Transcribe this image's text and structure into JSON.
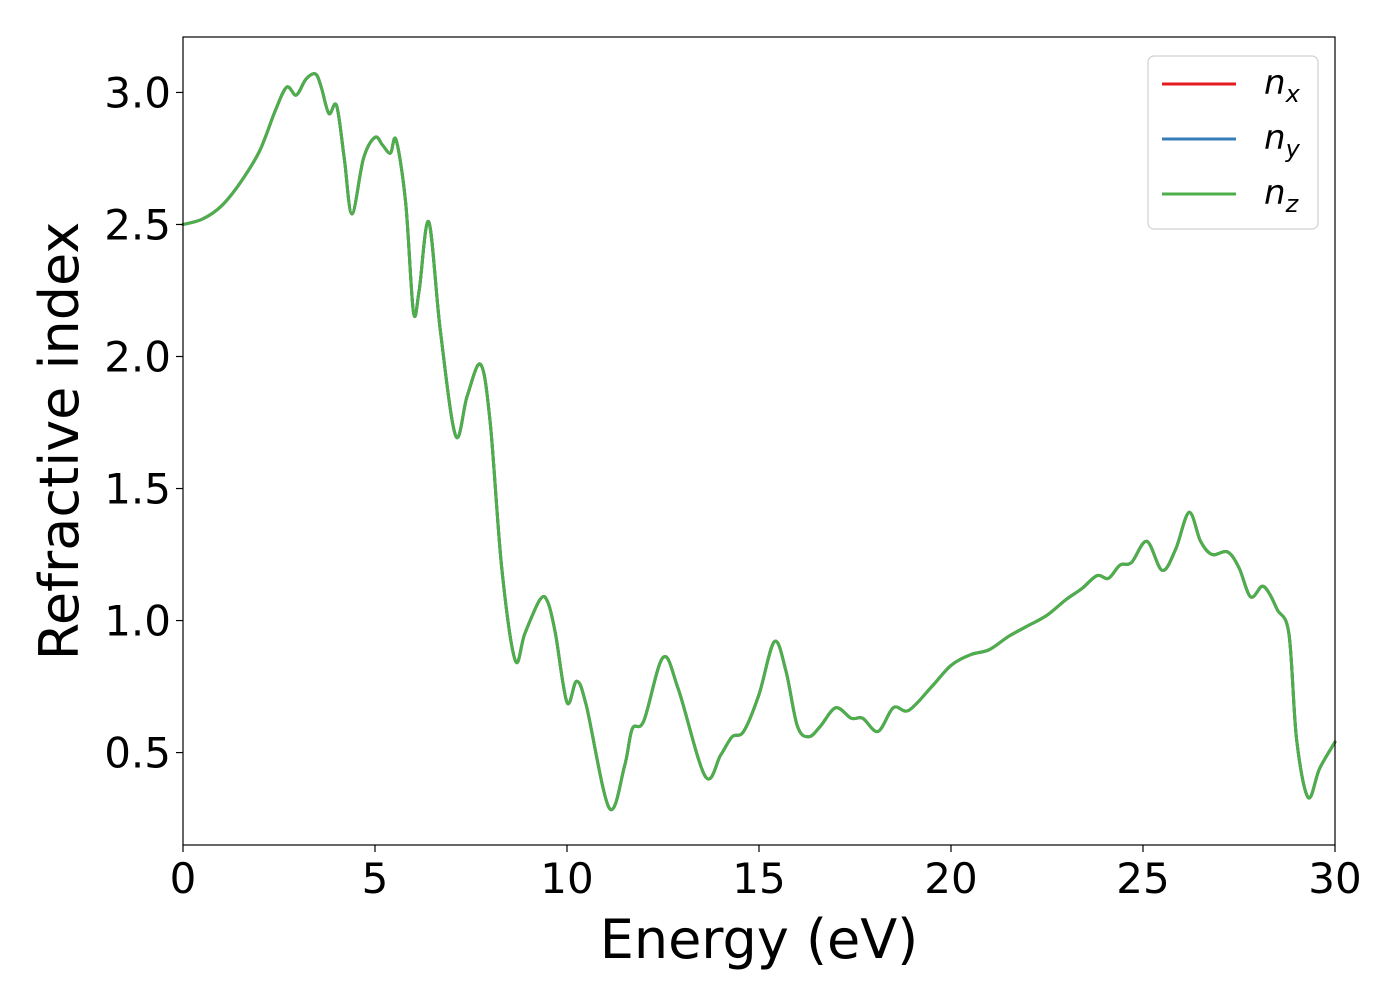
{
  "chart_data": {
    "type": "line",
    "title": "",
    "xlabel": "Energy (eV)",
    "ylabel": "Refractive index",
    "xlim": [
      0,
      30
    ],
    "ylim": [
      0.15,
      3.21
    ],
    "xticks": [
      0,
      5,
      10,
      15,
      20,
      25,
      30
    ],
    "xtick_labels": [
      "0",
      "5",
      "10",
      "15",
      "20",
      "25",
      "30"
    ],
    "yticks": [
      0.5,
      1.0,
      1.5,
      2.0,
      2.5,
      3.0
    ],
    "ytick_labels": [
      "0.5",
      "1.0",
      "1.5",
      "2.0",
      "2.5",
      "3.0"
    ],
    "grid": false,
    "legend_position": "top-right",
    "colors": {
      "n_x": "#e41a1c",
      "n_y": "#377eb8",
      "n_z": "#4daf4a"
    },
    "series": [
      {
        "name": "n_x",
        "legend_base": "n",
        "legend_sub": "x",
        "color": "#e41a1c",
        "x": [
          0,
          0.5,
          1.0,
          1.5,
          2.0,
          2.4,
          2.7,
          2.95,
          3.2,
          3.45,
          3.6,
          3.8,
          4.0,
          4.2,
          4.4,
          4.7,
          5.0,
          5.2,
          5.4,
          5.55,
          5.8,
          6.0,
          6.15,
          6.4,
          6.7,
          7.1,
          7.4,
          7.75,
          8.0,
          8.3,
          8.65,
          8.9,
          9.3,
          9.5,
          9.7,
          10.0,
          10.25,
          10.5,
          11.1,
          11.5,
          11.7,
          12.0,
          12.5,
          12.9,
          13.6,
          14.0,
          14.3,
          14.6,
          15.0,
          15.4,
          15.7,
          16.0,
          16.3,
          16.6,
          17.0,
          17.4,
          17.7,
          18.1,
          18.5,
          18.9,
          19.5,
          20.0,
          20.5,
          21.0,
          21.5,
          22.0,
          22.5,
          23.0,
          23.4,
          23.8,
          24.1,
          24.4,
          24.7,
          25.1,
          25.5,
          25.85,
          26.2,
          26.5,
          26.8,
          27.2,
          27.5,
          27.8,
          28.1,
          28.3,
          28.5,
          28.8,
          29.0,
          29.3,
          29.6,
          30.0
        ],
        "y": [
          2.5,
          2.52,
          2.57,
          2.66,
          2.78,
          2.93,
          3.02,
          2.99,
          3.05,
          3.07,
          3.02,
          2.92,
          2.95,
          2.75,
          2.54,
          2.75,
          2.83,
          2.8,
          2.77,
          2.82,
          2.58,
          2.17,
          2.25,
          2.51,
          2.1,
          1.7,
          1.85,
          1.97,
          1.75,
          1.2,
          0.85,
          0.95,
          1.08,
          1.07,
          0.95,
          0.69,
          0.77,
          0.68,
          0.29,
          0.45,
          0.59,
          0.62,
          0.86,
          0.74,
          0.41,
          0.49,
          0.56,
          0.58,
          0.72,
          0.92,
          0.81,
          0.6,
          0.56,
          0.6,
          0.67,
          0.63,
          0.63,
          0.58,
          0.67,
          0.66,
          0.75,
          0.83,
          0.87,
          0.89,
          0.94,
          0.98,
          1.02,
          1.08,
          1.12,
          1.17,
          1.16,
          1.21,
          1.22,
          1.3,
          1.19,
          1.27,
          1.41,
          1.3,
          1.25,
          1.26,
          1.2,
          1.09,
          1.13,
          1.1,
          1.04,
          0.95,
          0.55,
          0.33,
          0.44,
          0.54
        ]
      },
      {
        "name": "n_y",
        "legend_base": "n",
        "legend_sub": "y",
        "color": "#377eb8",
        "x": [
          0,
          0.5,
          1.0,
          1.5,
          2.0,
          2.4,
          2.7,
          2.95,
          3.2,
          3.45,
          3.6,
          3.8,
          4.0,
          4.2,
          4.4,
          4.7,
          5.0,
          5.2,
          5.4,
          5.55,
          5.8,
          6.0,
          6.15,
          6.4,
          6.7,
          7.1,
          7.4,
          7.75,
          8.0,
          8.3,
          8.65,
          8.9,
          9.3,
          9.5,
          9.7,
          10.0,
          10.25,
          10.5,
          11.1,
          11.5,
          11.7,
          12.0,
          12.5,
          12.9,
          13.6,
          14.0,
          14.3,
          14.6,
          15.0,
          15.4,
          15.7,
          16.0,
          16.3,
          16.6,
          17.0,
          17.4,
          17.7,
          18.1,
          18.5,
          18.9,
          19.5,
          20.0,
          20.5,
          21.0,
          21.5,
          22.0,
          22.5,
          23.0,
          23.4,
          23.8,
          24.1,
          24.4,
          24.7,
          25.1,
          25.5,
          25.85,
          26.2,
          26.5,
          26.8,
          27.2,
          27.5,
          27.8,
          28.1,
          28.3,
          28.5,
          28.8,
          29.0,
          29.3,
          29.6,
          30.0
        ],
        "y": [
          2.5,
          2.52,
          2.57,
          2.66,
          2.78,
          2.93,
          3.02,
          2.99,
          3.05,
          3.07,
          3.02,
          2.92,
          2.95,
          2.75,
          2.54,
          2.75,
          2.83,
          2.8,
          2.77,
          2.82,
          2.58,
          2.17,
          2.25,
          2.51,
          2.1,
          1.7,
          1.85,
          1.97,
          1.75,
          1.2,
          0.85,
          0.95,
          1.08,
          1.07,
          0.95,
          0.69,
          0.77,
          0.68,
          0.29,
          0.45,
          0.59,
          0.62,
          0.86,
          0.74,
          0.41,
          0.49,
          0.56,
          0.58,
          0.72,
          0.92,
          0.81,
          0.6,
          0.56,
          0.6,
          0.67,
          0.63,
          0.63,
          0.58,
          0.67,
          0.66,
          0.75,
          0.83,
          0.87,
          0.89,
          0.94,
          0.98,
          1.02,
          1.08,
          1.12,
          1.17,
          1.16,
          1.21,
          1.22,
          1.3,
          1.19,
          1.27,
          1.41,
          1.3,
          1.25,
          1.26,
          1.2,
          1.09,
          1.13,
          1.1,
          1.04,
          0.95,
          0.55,
          0.33,
          0.44,
          0.54
        ]
      },
      {
        "name": "n_z",
        "legend_base": "n",
        "legend_sub": "z",
        "color": "#4daf4a",
        "x": [
          0,
          0.5,
          1.0,
          1.5,
          2.0,
          2.4,
          2.7,
          2.95,
          3.2,
          3.45,
          3.6,
          3.8,
          4.0,
          4.2,
          4.4,
          4.7,
          5.0,
          5.2,
          5.4,
          5.55,
          5.8,
          6.0,
          6.15,
          6.4,
          6.7,
          7.1,
          7.4,
          7.75,
          8.0,
          8.3,
          8.65,
          8.9,
          9.3,
          9.5,
          9.7,
          10.0,
          10.25,
          10.5,
          11.1,
          11.5,
          11.7,
          12.0,
          12.5,
          12.9,
          13.6,
          14.0,
          14.3,
          14.6,
          15.0,
          15.4,
          15.7,
          16.0,
          16.3,
          16.6,
          17.0,
          17.4,
          17.7,
          18.1,
          18.5,
          18.9,
          19.5,
          20.0,
          20.5,
          21.0,
          21.5,
          22.0,
          22.5,
          23.0,
          23.4,
          23.8,
          24.1,
          24.4,
          24.7,
          25.1,
          25.5,
          25.85,
          26.2,
          26.5,
          26.8,
          27.2,
          27.5,
          27.8,
          28.1,
          28.3,
          28.5,
          28.8,
          29.0,
          29.3,
          29.6,
          30.0
        ],
        "y": [
          2.5,
          2.52,
          2.57,
          2.66,
          2.78,
          2.93,
          3.02,
          2.99,
          3.05,
          3.07,
          3.02,
          2.92,
          2.95,
          2.75,
          2.54,
          2.75,
          2.83,
          2.8,
          2.77,
          2.82,
          2.58,
          2.17,
          2.25,
          2.51,
          2.1,
          1.7,
          1.85,
          1.97,
          1.75,
          1.2,
          0.85,
          0.95,
          1.08,
          1.07,
          0.95,
          0.69,
          0.77,
          0.68,
          0.29,
          0.45,
          0.59,
          0.62,
          0.86,
          0.74,
          0.41,
          0.49,
          0.56,
          0.58,
          0.72,
          0.92,
          0.81,
          0.6,
          0.56,
          0.6,
          0.67,
          0.63,
          0.63,
          0.58,
          0.67,
          0.66,
          0.75,
          0.83,
          0.87,
          0.89,
          0.94,
          0.98,
          1.02,
          1.08,
          1.12,
          1.17,
          1.16,
          1.21,
          1.22,
          1.3,
          1.19,
          1.27,
          1.41,
          1.3,
          1.25,
          1.26,
          1.2,
          1.09,
          1.13,
          1.1,
          1.04,
          0.95,
          0.55,
          0.33,
          0.44,
          0.54
        ]
      }
    ]
  }
}
